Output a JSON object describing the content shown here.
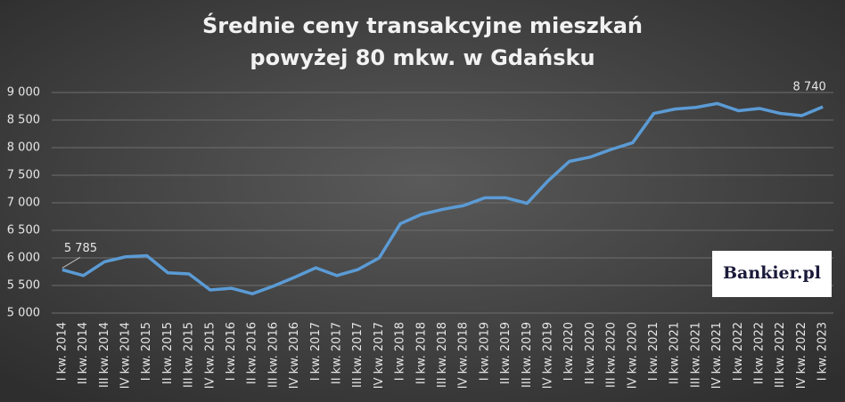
{
  "chart_data": {
    "type": "line",
    "title": [
      "Średnie ceny transakcyjne mieszkań",
      "powyżej 80 mkw. w Gdańsku"
    ],
    "logo": "Bankier.pl",
    "categories": [
      "I kw. 2014",
      "II kw. 2014",
      "III kw. 2014",
      "IV kw. 2014",
      "I kw. 2015",
      "II kw. 2015",
      "III kw. 2015",
      "IV kw. 2015",
      "I kw. 2016",
      "II kw. 2016",
      "III kw. 2016",
      "IV kw. 2016",
      "I kw. 2017",
      "II kw. 2017",
      "III kw. 2017",
      "IV kw. 2017",
      "I kw. 2018",
      "II kw. 2018",
      "III kw. 2018",
      "IV kw. 2018",
      "I kw. 2019",
      "II kw. 2019",
      "III kw. 2019",
      "IV kw. 2019",
      "I kw. 2020",
      "II kw. 2020",
      "III kw. 2020",
      "IV kw. 2020",
      "I kw. 2021",
      "II kw. 2021",
      "III kw. 2021",
      "IV kw. 2021",
      "I kw. 2022",
      "II kw. 2022",
      "III kw. 2022",
      "IV kw. 2022",
      "I kw. 2023"
    ],
    "values": [
      5785,
      5680,
      5930,
      6020,
      6040,
      5730,
      5710,
      5420,
      5450,
      5350,
      5490,
      5650,
      5820,
      5680,
      5790,
      6000,
      6620,
      6790,
      6880,
      6950,
      7090,
      7090,
      6990,
      7400,
      7750,
      7830,
      7970,
      8090,
      8620,
      8700,
      8730,
      8800,
      8670,
      8710,
      8620,
      8580,
      8740
    ],
    "value_labels": [
      "5 785",
      null,
      null,
      null,
      null,
      null,
      null,
      null,
      null,
      null,
      null,
      null,
      null,
      null,
      null,
      null,
      null,
      null,
      null,
      null,
      null,
      null,
      null,
      null,
      null,
      null,
      null,
      null,
      null,
      null,
      null,
      null,
      null,
      null,
      null,
      null,
      "8 740"
    ],
    "color": "#5b9bd5",
    "ylim": [
      5000,
      9000
    ],
    "yticks": [
      {
        "value": 5000,
        "label": "5 000"
      },
      {
        "value": 5500,
        "label": "5 500"
      },
      {
        "value": 6000,
        "label": "6 000"
      },
      {
        "value": 6500,
        "label": "6 500"
      },
      {
        "value": 7000,
        "label": "7 000"
      },
      {
        "value": 7500,
        "label": "7 500"
      },
      {
        "value": 8000,
        "label": "8 000"
      },
      {
        "value": 8500,
        "label": "8 500"
      },
      {
        "value": 9000,
        "label": "9 000"
      }
    ],
    "grid": true
  }
}
